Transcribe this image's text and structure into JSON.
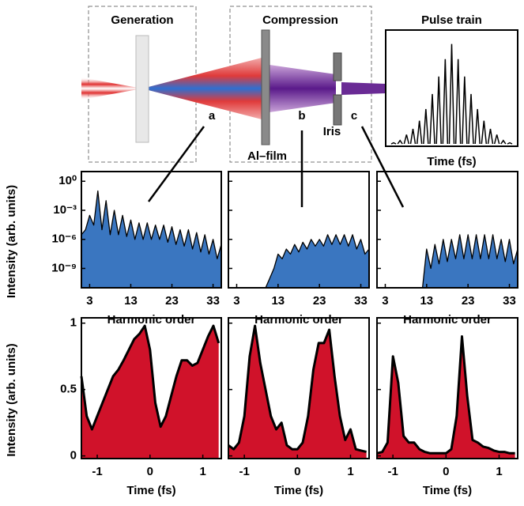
{
  "diagram": {
    "generation": "Generation",
    "compression": "Compression",
    "al_film": "Al–film",
    "iris": "Iris",
    "a": "a",
    "b": "b",
    "c": "c"
  },
  "chart_data": [
    {
      "type": "stem",
      "title": "Pulse train",
      "xlabel": "Time (fs)",
      "color": "#000000",
      "ylim": [
        0,
        1
      ],
      "values": [
        0.03,
        0.05,
        0.1,
        0.15,
        0.22,
        0.32,
        0.45,
        0.6,
        0.75,
        0.88,
        0.75,
        0.6,
        0.45,
        0.32,
        0.22,
        0.15,
        0.1,
        0.05,
        0.03
      ]
    },
    {
      "type": "area",
      "xlabel": "Harmonic order",
      "ylabel": "Intensity (arb. units)",
      "color": "#3a76c0",
      "ylog": true,
      "xlim": [
        1,
        35
      ],
      "ylim": [
        1e-11,
        10
      ],
      "xticks": [
        3,
        13,
        23,
        33
      ],
      "yticks": [
        {
          "value": 1,
          "label": "10⁰"
        },
        {
          "value": 0.001,
          "label": "10⁻³"
        },
        {
          "value": 1e-06,
          "label": "10⁻⁶"
        },
        {
          "value": 1e-09,
          "label": "10⁻⁹"
        }
      ],
      "x": [
        1,
        2,
        3,
        4,
        5,
        6,
        7,
        8,
        9,
        10,
        11,
        12,
        13,
        14,
        15,
        16,
        17,
        18,
        19,
        20,
        21,
        22,
        23,
        24,
        25,
        26,
        27,
        28,
        29,
        30,
        31,
        32,
        33,
        34,
        35
      ],
      "values": [
        3e-06,
        1e-05,
        0.0003,
        3e-05,
        0.1,
        1e-05,
        0.01,
        3e-06,
        0.001,
        3e-06,
        0.0003,
        2e-06,
        0.0001,
        1e-06,
        5e-05,
        1e-06,
        5e-05,
        1e-06,
        3e-05,
        1e-06,
        3e-05,
        5e-07,
        2e-05,
        3e-07,
        1e-05,
        2e-07,
        1e-05,
        1e-07,
        5e-06,
        5e-08,
        3e-06,
        3e-08,
        1e-06,
        1e-08,
        3e-07
      ]
    },
    {
      "type": "area",
      "xlabel": "Harmonic order",
      "color": "#3a76c0",
      "ylog": true,
      "xlim": [
        1,
        35
      ],
      "ylim": [
        1e-11,
        10
      ],
      "xticks": [
        3,
        13,
        23,
        33
      ],
      "x": [
        1,
        2,
        3,
        4,
        5,
        6,
        7,
        8,
        9,
        10,
        11,
        12,
        13,
        14,
        15,
        16,
        17,
        18,
        19,
        20,
        21,
        22,
        23,
        24,
        25,
        26,
        27,
        28,
        29,
        30,
        31,
        32,
        33,
        34,
        35
      ],
      "values": [
        1e-11,
        1e-11,
        1e-11,
        1e-11,
        1e-11,
        1e-11,
        1e-11,
        1e-11,
        1e-11,
        1e-11,
        1e-10,
        1e-09,
        3e-08,
        1e-08,
        1e-07,
        3e-08,
        3e-07,
        5e-08,
        5e-07,
        1e-07,
        1e-06,
        2e-07,
        1e-06,
        2e-07,
        3e-06,
        3e-07,
        3e-06,
        3e-07,
        3e-06,
        2e-07,
        3e-06,
        1e-07,
        1e-06,
        3e-08,
        1e-07
      ]
    },
    {
      "type": "area",
      "xlabel": "Harmonic order",
      "color": "#3a76c0",
      "ylog": true,
      "xlim": [
        1,
        35
      ],
      "ylim": [
        1e-11,
        10
      ],
      "xticks": [
        3,
        13,
        23,
        33
      ],
      "x": [
        1,
        2,
        3,
        4,
        5,
        6,
        7,
        8,
        9,
        10,
        11,
        12,
        13,
        14,
        15,
        16,
        17,
        18,
        19,
        20,
        21,
        22,
        23,
        24,
        25,
        26,
        27,
        28,
        29,
        30,
        31,
        32,
        33,
        34,
        35
      ],
      "values": [
        1e-11,
        1e-11,
        1e-11,
        1e-11,
        1e-11,
        1e-11,
        1e-11,
        1e-11,
        1e-11,
        1e-11,
        1e-11,
        1e-11,
        1e-07,
        1e-09,
        3e-07,
        3e-09,
        1e-06,
        5e-09,
        1e-06,
        1e-08,
        3e-06,
        1e-08,
        3e-06,
        1e-08,
        3e-06,
        1e-08,
        3e-06,
        1e-08,
        3e-06,
        1e-08,
        1e-06,
        5e-09,
        1e-06,
        3e-09,
        1e-07
      ]
    },
    {
      "type": "area",
      "xlabel": "Time (fs)",
      "ylabel": "Intensity (arb. units)",
      "color": "#d0122a",
      "xlim": [
        -1.3,
        1.35
      ],
      "ylim": [
        -0.02,
        1.04
      ],
      "xticks": [
        -1,
        0,
        1
      ],
      "yticks": [
        0,
        0.5,
        1
      ],
      "x": [
        -1.3,
        -1.2,
        -1.1,
        -1.0,
        -0.9,
        -0.8,
        -0.7,
        -0.6,
        -0.5,
        -0.4,
        -0.3,
        -0.2,
        -0.1,
        0,
        0.1,
        0.2,
        0.3,
        0.4,
        0.5,
        0.6,
        0.7,
        0.8,
        0.9,
        1.0,
        1.1,
        1.2,
        1.3
      ],
      "values": [
        0.6,
        0.3,
        0.2,
        0.3,
        0.4,
        0.5,
        0.6,
        0.65,
        0.72,
        0.8,
        0.88,
        0.92,
        0.98,
        0.8,
        0.4,
        0.22,
        0.3,
        0.45,
        0.6,
        0.72,
        0.72,
        0.68,
        0.7,
        0.8,
        0.9,
        0.98,
        0.85
      ]
    },
    {
      "type": "area",
      "xlabel": "Time (fs)",
      "color": "#d0122a",
      "xlim": [
        -1.3,
        1.35
      ],
      "ylim": [
        -0.02,
        1.04
      ],
      "xticks": [
        -1,
        0,
        1
      ],
      "x": [
        -1.3,
        -1.2,
        -1.1,
        -1.0,
        -0.9,
        -0.8,
        -0.7,
        -0.6,
        -0.5,
        -0.4,
        -0.3,
        -0.2,
        -0.1,
        0,
        0.1,
        0.2,
        0.3,
        0.4,
        0.5,
        0.6,
        0.7,
        0.8,
        0.9,
        1.0,
        1.1,
        1.2,
        1.3
      ],
      "values": [
        0.08,
        0.05,
        0.1,
        0.3,
        0.75,
        0.98,
        0.7,
        0.5,
        0.3,
        0.2,
        0.25,
        0.08,
        0.05,
        0.05,
        0.1,
        0.3,
        0.65,
        0.85,
        0.85,
        0.95,
        0.6,
        0.3,
        0.12,
        0.2,
        0.05,
        0.04,
        0.03
      ]
    },
    {
      "type": "area",
      "xlabel": "Time (fs)",
      "color": "#d0122a",
      "xlim": [
        -1.3,
        1.35
      ],
      "ylim": [
        -0.02,
        1.04
      ],
      "xticks": [
        -1,
        0,
        1
      ],
      "x": [
        -1.3,
        -1.2,
        -1.1,
        -1.0,
        -0.9,
        -0.8,
        -0.7,
        -0.6,
        -0.5,
        -0.4,
        -0.3,
        -0.2,
        -0.1,
        0,
        0.1,
        0.2,
        0.3,
        0.4,
        0.5,
        0.6,
        0.7,
        0.8,
        0.9,
        1.0,
        1.1,
        1.2,
        1.3
      ],
      "values": [
        0.02,
        0.03,
        0.1,
        0.75,
        0.55,
        0.15,
        0.1,
        0.1,
        0.05,
        0.03,
        0.02,
        0.02,
        0.02,
        0.02,
        0.05,
        0.3,
        0.9,
        0.45,
        0.12,
        0.1,
        0.07,
        0.06,
        0.04,
        0.03,
        0.03,
        0.02,
        0.02
      ]
    }
  ]
}
